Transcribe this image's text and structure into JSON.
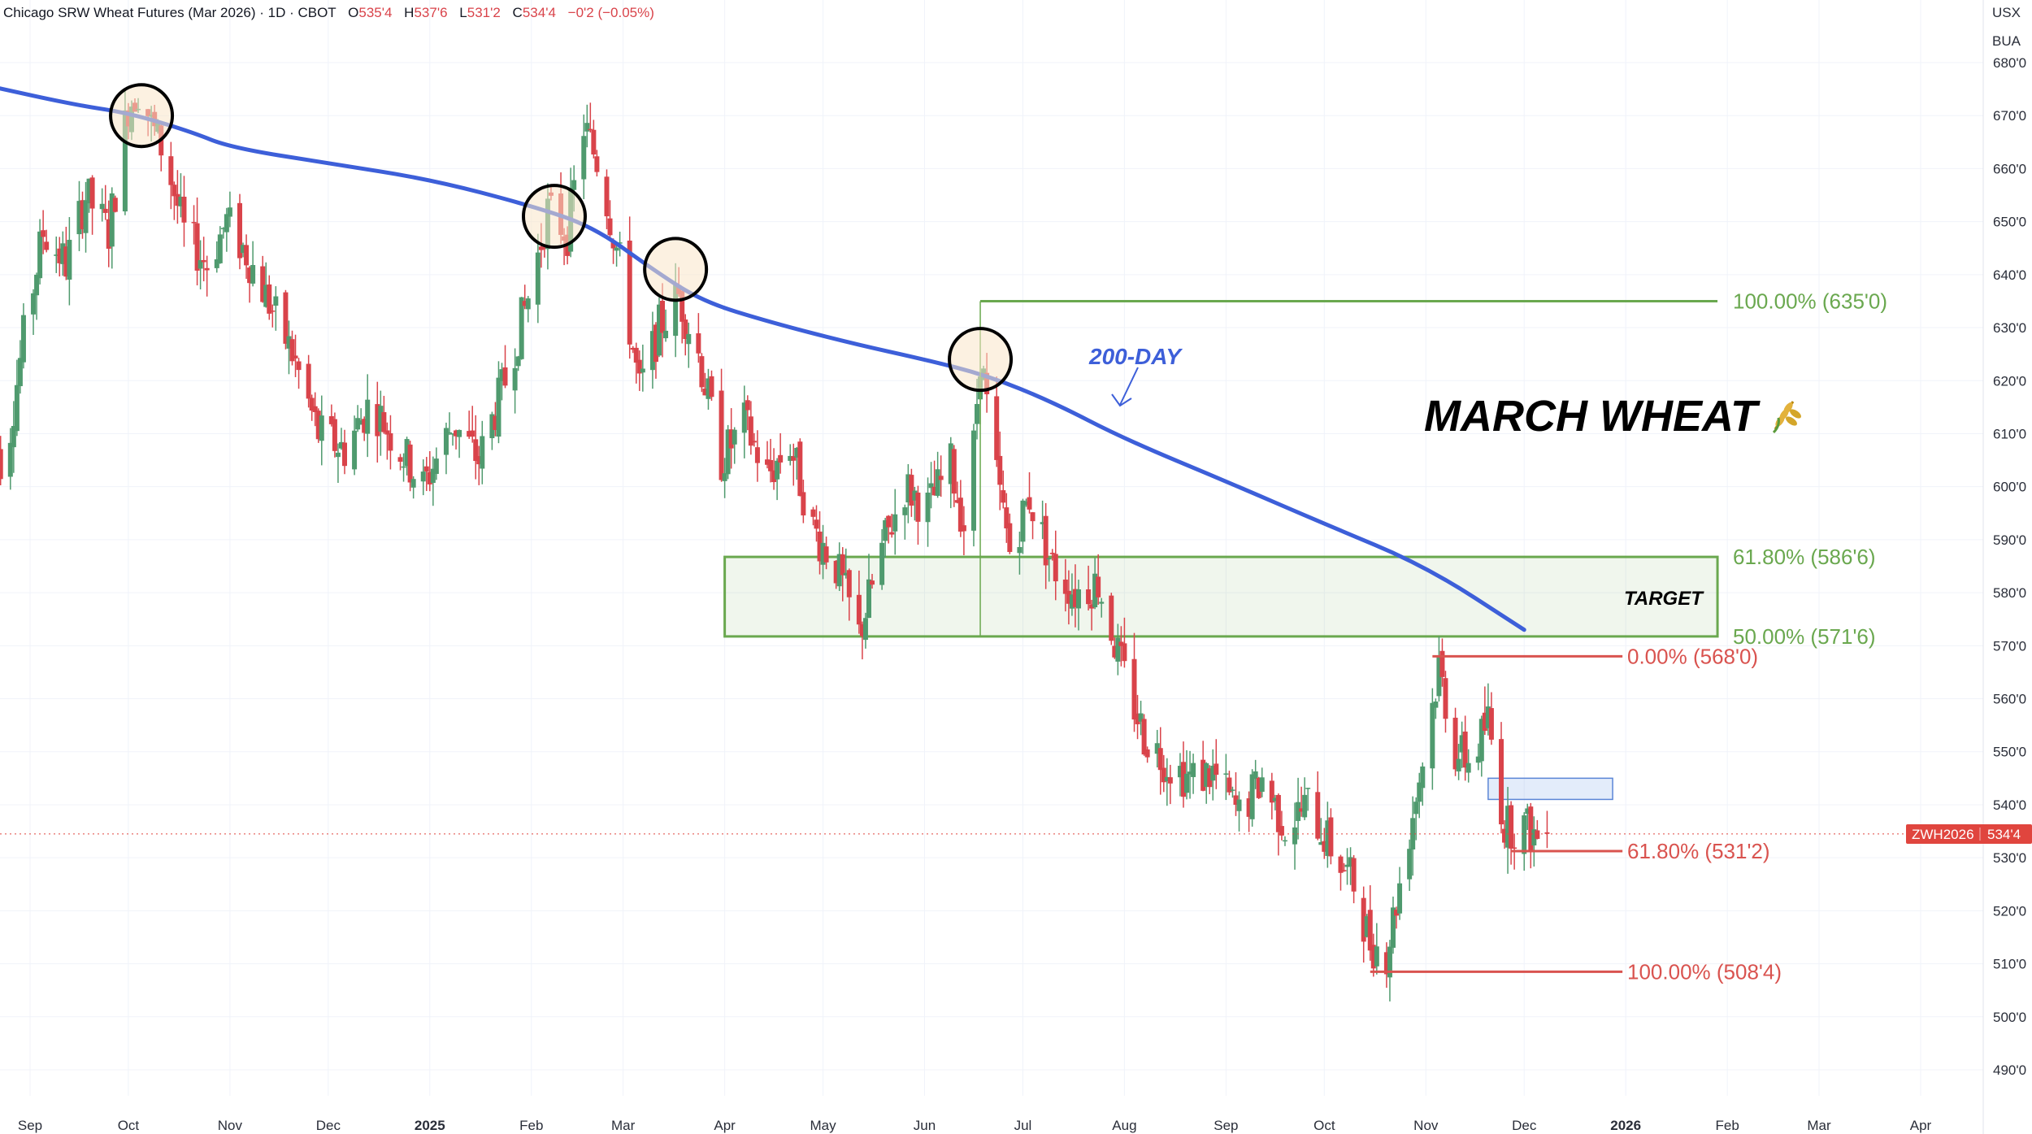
{
  "header": {
    "symbol_desc": "Chicago SRW Wheat Futures (Mar 2026) · 1D · CBOT",
    "o_label": "O",
    "o_value": "535'4",
    "h_label": "H",
    "h_value": "537'6",
    "l_label": "L",
    "l_value": "531'2",
    "c_label": "C",
    "c_value": "534'4",
    "change": "−0'2 (−0.05%)"
  },
  "currency": {
    "unit1": "USX",
    "unit2": "BUA"
  },
  "price_tag": {
    "symbol": "ZWH2026",
    "value": "534'4"
  },
  "annotations": {
    "title": "MARCH WHEAT",
    "title_icon": "wheat-icon",
    "ma_label": "200-DAY",
    "target_label": "TARGET"
  },
  "colors": {
    "up": "#26a69a",
    "up_body": "#4f9a6e",
    "down": "#ef5350",
    "down_body": "#d9434a",
    "ma": "#3d5fd9",
    "fib_green": "#6aa84f",
    "fib_red": "#d9534f",
    "grid": "#f0f3fa",
    "axis_text": "#2a2e39",
    "tag_bg": "#e0453e"
  },
  "chart_data": {
    "type": "candlestick",
    "title": "Chicago SRW Wheat Futures (Mar 2026)",
    "interval": "1D",
    "exchange": "CBOT",
    "ylabel": "USX",
    "ylim": [
      486,
      684
    ],
    "y_ticks": [
      490,
      500,
      510,
      520,
      530,
      540,
      550,
      560,
      570,
      580,
      590,
      600,
      610,
      620,
      630,
      640,
      650,
      660,
      670,
      680
    ],
    "y_tick_labels": [
      "490'0",
      "500'0",
      "510'0",
      "520'0",
      "530'0",
      "540'0",
      "550'0",
      "560'0",
      "570'0",
      "580'0",
      "590'0",
      "600'0",
      "610'0",
      "620'0",
      "630'0",
      "640'0",
      "650'0",
      "660'0",
      "670'0",
      "680'0"
    ],
    "x_tick_labels": [
      "Sep",
      "Oct",
      "Nov",
      "Dec",
      "2025",
      "Feb",
      "Mar",
      "Apr",
      "May",
      "Jun",
      "Jul",
      "Aug",
      "Sep",
      "Oct",
      "Nov",
      "Dec",
      "2026",
      "Feb",
      "Mar",
      "Apr"
    ],
    "x_tick_dates": [
      "2024-09-01",
      "2024-10-01",
      "2024-11-01",
      "2024-12-01",
      "2025-01-01",
      "2025-02-01",
      "2025-03-01",
      "2025-04-01",
      "2025-05-01",
      "2025-06-01",
      "2025-07-01",
      "2025-08-01",
      "2025-09-01",
      "2025-10-01",
      "2025-11-01",
      "2025-12-01",
      "2026-01-01",
      "2026-02-01",
      "2026-03-01",
      "2026-04-01"
    ],
    "grid": true,
    "last": {
      "open": 535.5,
      "high": 537.75,
      "low": 531.25,
      "close": 534.5
    },
    "candle_guide": [
      [
        "2024-08-20",
        612
      ],
      [
        "2024-08-24",
        603
      ],
      [
        "2024-08-30",
        628
      ],
      [
        "2024-09-05",
        648
      ],
      [
        "2024-09-12",
        642
      ],
      [
        "2024-09-18",
        655
      ],
      [
        "2024-09-25",
        648
      ],
      [
        "2024-10-01",
        672
      ],
      [
        "2024-10-05",
        676
      ],
      [
        "2024-10-08",
        668
      ],
      [
        "2024-10-12",
        663
      ],
      [
        "2024-10-18",
        648
      ],
      [
        "2024-10-25",
        642
      ],
      [
        "2024-10-31",
        650
      ],
      [
        "2024-11-06",
        644
      ],
      [
        "2024-11-12",
        636
      ],
      [
        "2024-11-20",
        625
      ],
      [
        "2024-11-28",
        610
      ],
      [
        "2024-12-06",
        607
      ],
      [
        "2024-12-14",
        616
      ],
      [
        "2024-12-22",
        608
      ],
      [
        "2024-12-30",
        600
      ],
      [
        "2025-01-08",
        612
      ],
      [
        "2025-01-16",
        605
      ],
      [
        "2025-01-24",
        620
      ],
      [
        "2025-02-01",
        638
      ],
      [
        "2025-02-06",
        652
      ],
      [
        "2025-02-12",
        648
      ],
      [
        "2025-02-17",
        668
      ],
      [
        "2025-02-22",
        660
      ],
      [
        "2025-02-28",
        642
      ],
      [
        "2025-03-06",
        618
      ],
      [
        "2025-03-12",
        630
      ],
      [
        "2025-03-18",
        636
      ],
      [
        "2025-03-24",
        625
      ],
      [
        "2025-03-31",
        605
      ],
      [
        "2025-04-07",
        612
      ],
      [
        "2025-04-14",
        602
      ],
      [
        "2025-04-21",
        608
      ],
      [
        "2025-04-28",
        592
      ],
      [
        "2025-05-05",
        585
      ],
      [
        "2025-05-12",
        572
      ],
      [
        "2025-05-19",
        588
      ],
      [
        "2025-05-26",
        600
      ],
      [
        "2025-06-02",
        596
      ],
      [
        "2025-06-09",
        604
      ],
      [
        "2025-06-14",
        590
      ],
      [
        "2025-06-18",
        625
      ],
      [
        "2025-06-22",
        605
      ],
      [
        "2025-06-27",
        588
      ],
      [
        "2025-07-03",
        598
      ],
      [
        "2025-07-10",
        585
      ],
      [
        "2025-07-17",
        580
      ],
      [
        "2025-07-24",
        582
      ],
      [
        "2025-07-31",
        566
      ],
      [
        "2025-08-07",
        553
      ],
      [
        "2025-08-14",
        548
      ],
      [
        "2025-08-21",
        545
      ],
      [
        "2025-08-28",
        546
      ],
      [
        "2025-09-05",
        538
      ],
      [
        "2025-09-12",
        545
      ],
      [
        "2025-09-19",
        536
      ],
      [
        "2025-09-26",
        540
      ],
      [
        "2025-10-03",
        532
      ],
      [
        "2025-10-10",
        525
      ],
      [
        "2025-10-15",
        514
      ],
      [
        "2025-10-20",
        512
      ],
      [
        "2025-10-27",
        535
      ],
      [
        "2025-11-01",
        552
      ],
      [
        "2025-11-05",
        566
      ],
      [
        "2025-11-10",
        550
      ],
      [
        "2025-11-15",
        548
      ],
      [
        "2025-11-20",
        556
      ],
      [
        "2025-11-25",
        536
      ],
      [
        "2025-12-01",
        536
      ],
      [
        "2025-12-05",
        534
      ],
      [
        "2025-12-08",
        534.5
      ]
    ],
    "moving_average": {
      "name": "200-DAY",
      "points": [
        [
          "2024-08-20",
          675.5
        ],
        [
          "2024-09-15",
          672
        ],
        [
          "2024-10-01",
          670.5
        ],
        [
          "2024-10-20",
          667
        ],
        [
          "2024-11-01",
          664
        ],
        [
          "2024-12-01",
          661
        ],
        [
          "2025-01-01",
          658
        ],
        [
          "2025-02-01",
          653
        ],
        [
          "2025-02-20",
          649
        ],
        [
          "2025-03-10",
          641
        ],
        [
          "2025-03-25",
          635
        ],
        [
          "2025-04-15",
          631
        ],
        [
          "2025-05-10",
          627
        ],
        [
          "2025-06-01",
          624
        ],
        [
          "2025-06-20",
          621
        ],
        [
          "2025-07-10",
          616
        ],
        [
          "2025-08-01",
          609
        ],
        [
          "2025-09-01",
          601
        ],
        [
          "2025-10-01",
          593
        ],
        [
          "2025-11-01",
          585
        ],
        [
          "2025-12-01",
          573
        ]
      ]
    },
    "highlight_circles": [
      [
        "2024-10-05",
        670
      ],
      [
        "2025-02-08",
        651
      ],
      [
        "2025-03-17",
        641
      ],
      [
        "2025-06-18",
        624
      ]
    ],
    "fib_up": {
      "levels": [
        {
          "label": "100.00% (635'0)",
          "value": 635
        },
        {
          "label": "61.80% (586'6)",
          "value": 586.75
        },
        {
          "label": "50.00% (571'6)",
          "value": 571.75
        }
      ],
      "start_date": "2025-06-18"
    },
    "fib_down": {
      "levels": [
        {
          "label": "0.00% (568'0)",
          "value": 568
        },
        {
          "label": "61.80% (531'2)",
          "value": 531.25
        },
        {
          "label": "100.00% (508'4)",
          "value": 508.5
        }
      ]
    },
    "target_zone": {
      "label": "TARGET",
      "low": 571.75,
      "high": 586.75,
      "start_date": "2025-04-01",
      "end_date": "2026-01-29"
    },
    "consolidation_box": {
      "low": 541,
      "high": 545,
      "start_date": "2025-11-20",
      "end_date": "2025-12-28"
    }
  }
}
